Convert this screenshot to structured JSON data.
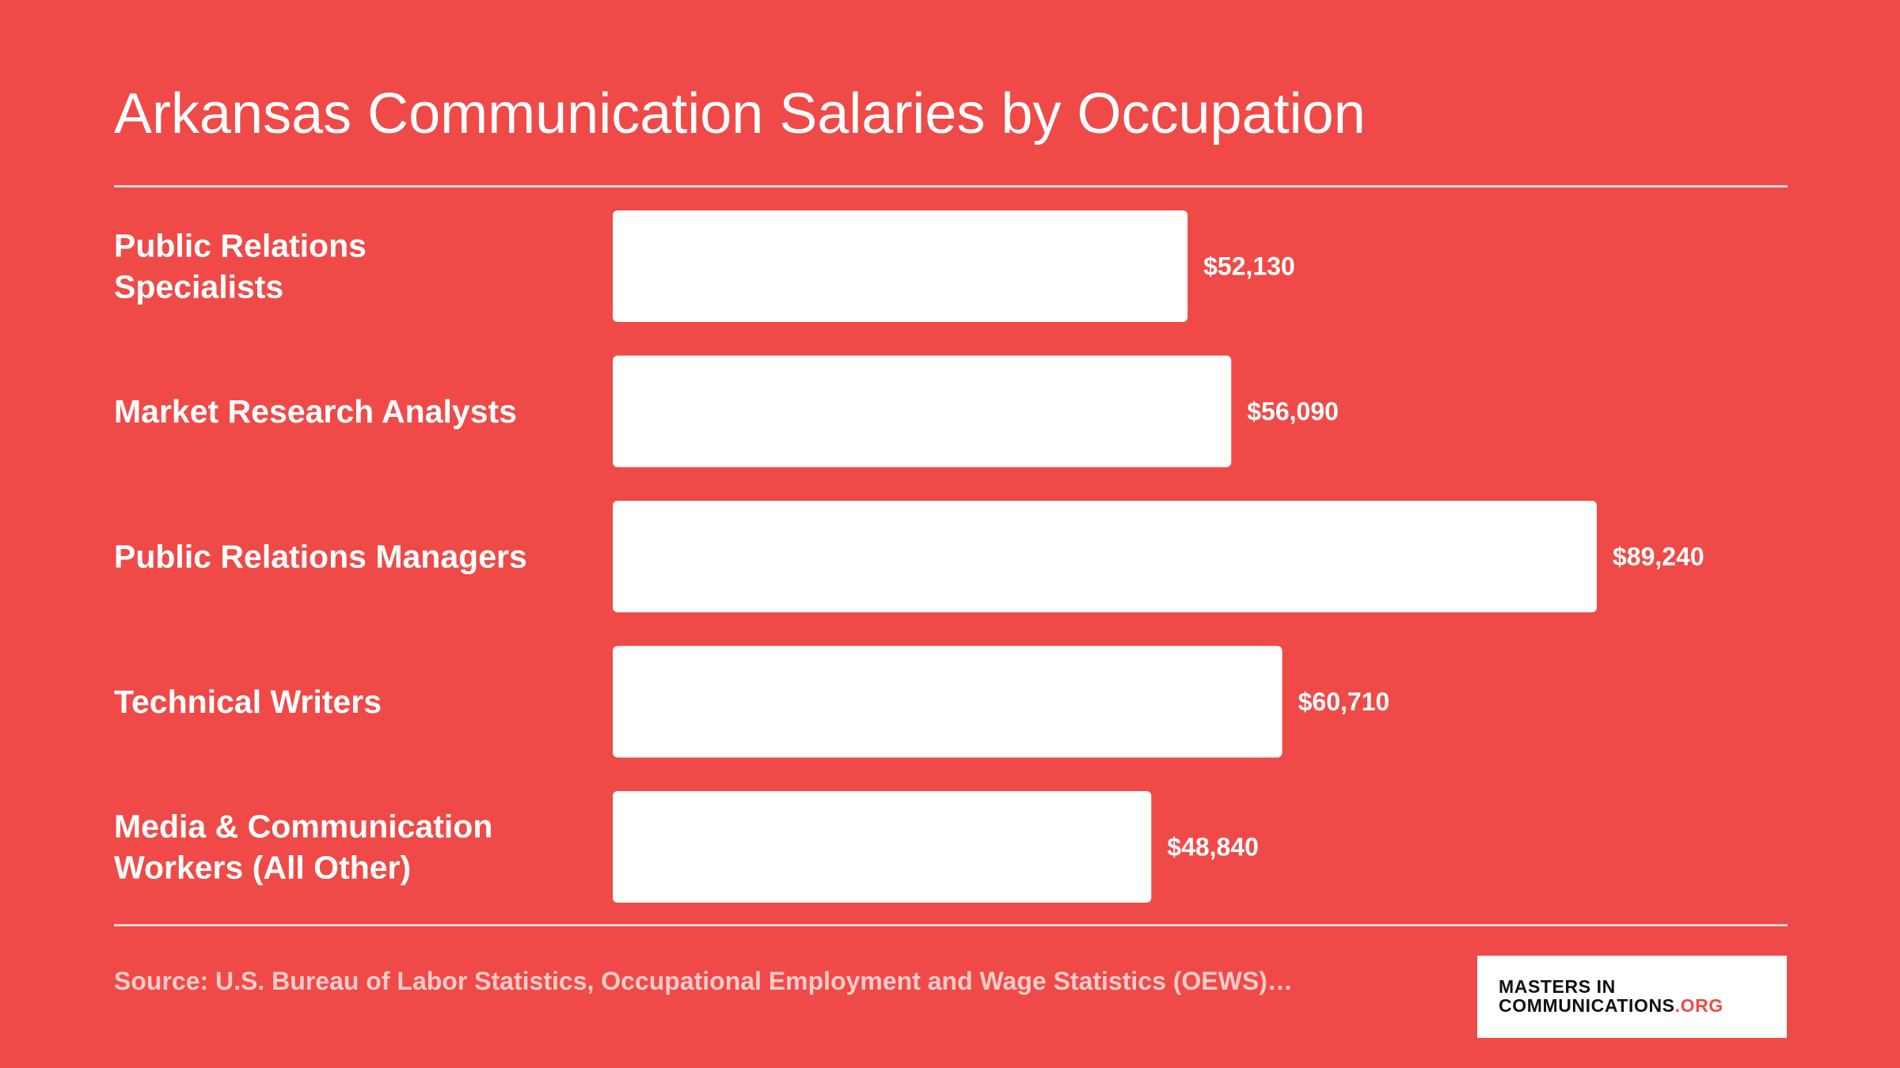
{
  "colors": {
    "background": "#ef4a47",
    "bar": "#ffffff",
    "text": "#ffffff",
    "logo_accent": "#ef4a47"
  },
  "title": "Arkansas Communication Salaries by Occupation",
  "source": "Source: U.S. Bureau of Labor Statistics, Occupational Employment and Wage Statistics (OEWS)…",
  "logo": {
    "line1": "MASTERS IN",
    "line2_main": "COMMUNICATIONS",
    "line2_suffix": ".ORG"
  },
  "chart_data": {
    "type": "bar",
    "orientation": "horizontal",
    "categories": [
      [
        "Public Relations",
        "Specialists"
      ],
      [
        "Market Research Analysts"
      ],
      [
        "Public Relations Managers"
      ],
      [
        "Technical Writers"
      ],
      [
        "Media & Communication",
        "Workers (All Other)"
      ]
    ],
    "values": [
      52130,
      56090,
      89240,
      60710,
      48840
    ],
    "value_labels": [
      "$52,130",
      "$56,090",
      "$89,240",
      "$60,710",
      "$48,840"
    ],
    "title": "Arkansas Communication Salaries by Occupation",
    "xlabel": "",
    "ylabel": "",
    "xlim": [
      0,
      89240
    ],
    "grid": false,
    "legend": "none"
  }
}
